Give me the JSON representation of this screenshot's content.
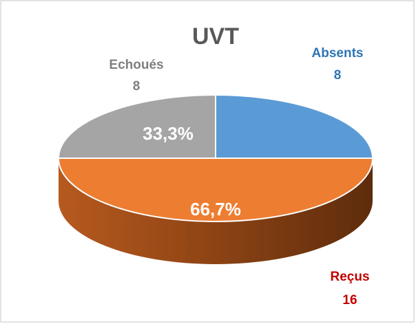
{
  "chart_data": {
    "type": "pie3d",
    "title": "UVT",
    "categories": [
      "Absents",
      "Reçus",
      "Echoués"
    ],
    "values": [
      8,
      16,
      8
    ],
    "percent_labels": [
      null,
      "66,7%",
      "33,3%"
    ],
    "colors": [
      "#5b9bd5",
      "#ed7d31",
      "#a5a5a5"
    ],
    "label_colors": [
      "#2e75b6",
      "#c00000",
      "#7f7f7f"
    ]
  }
}
